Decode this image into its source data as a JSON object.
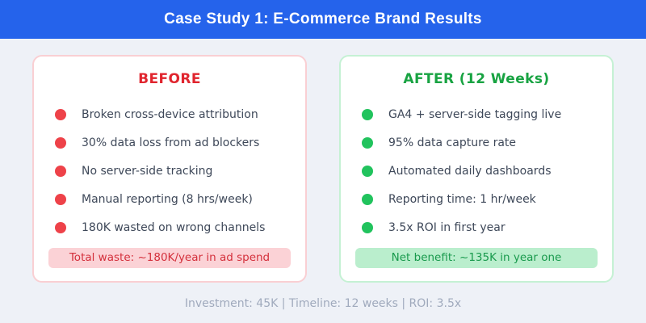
{
  "page": {
    "background": "#eef1f7"
  },
  "header": {
    "title": "Case Study 1: E-Commerce Brand Results",
    "background": "#2563eb",
    "text_color": "#ffffff"
  },
  "panels": {
    "before": {
      "title": "BEFORE",
      "accent_color": "#e0252e",
      "bullet_color": "#ee4249",
      "border_color": "#f9cfd3",
      "items": [
        "Broken cross-device attribution",
        "30% data loss from ad blockers",
        "No server-side tracking",
        "Manual reporting (8 hrs/week)",
        "180K wasted on wrong channels"
      ],
      "badge": {
        "label": "Total waste: ~180K/year in ad spend",
        "background": "#fbd2d6",
        "text_color": "#d4303c"
      }
    },
    "after": {
      "title": "AFTER (12 Weeks)",
      "accent_color": "#18a342",
      "bullet_color": "#21c35d",
      "border_color": "#c5f1d4",
      "items": [
        "GA4 + server-side tagging live",
        "95% data capture rate",
        "Automated daily dashboards",
        "Reporting time: 1 hr/week",
        "3.5x ROI in first year"
      ],
      "badge": {
        "label": "Net benefit: ~135K in year one",
        "background": "#baeecd",
        "text_color": "#199a4d"
      }
    }
  },
  "footer": {
    "text": "Investment: 45K | Timeline: 12 weeks | ROI: 3.5x",
    "text_color": "#a0aabd"
  }
}
